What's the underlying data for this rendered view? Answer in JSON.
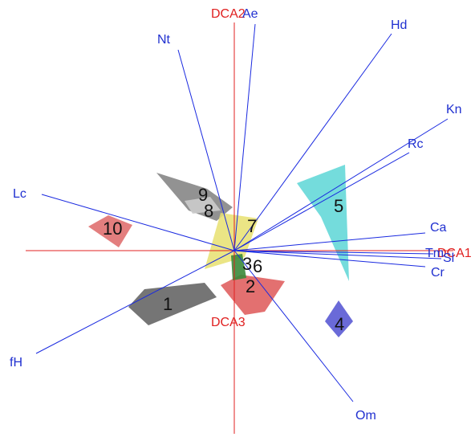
{
  "axes": {
    "labels": [
      "DCA1",
      "DCA2",
      "DCA3"
    ]
  },
  "vectors": {
    "labels": [
      "Ae",
      "Nt",
      "Hd",
      "Kn",
      "Rc",
      "Ca",
      "Tm",
      "Sl",
      "Cr",
      "Om",
      "fH",
      "Lc"
    ]
  },
  "groups": {
    "labels": [
      "1",
      "2",
      "3",
      "4",
      "5",
      "6",
      "7",
      "8",
      "9",
      "10"
    ]
  }
}
